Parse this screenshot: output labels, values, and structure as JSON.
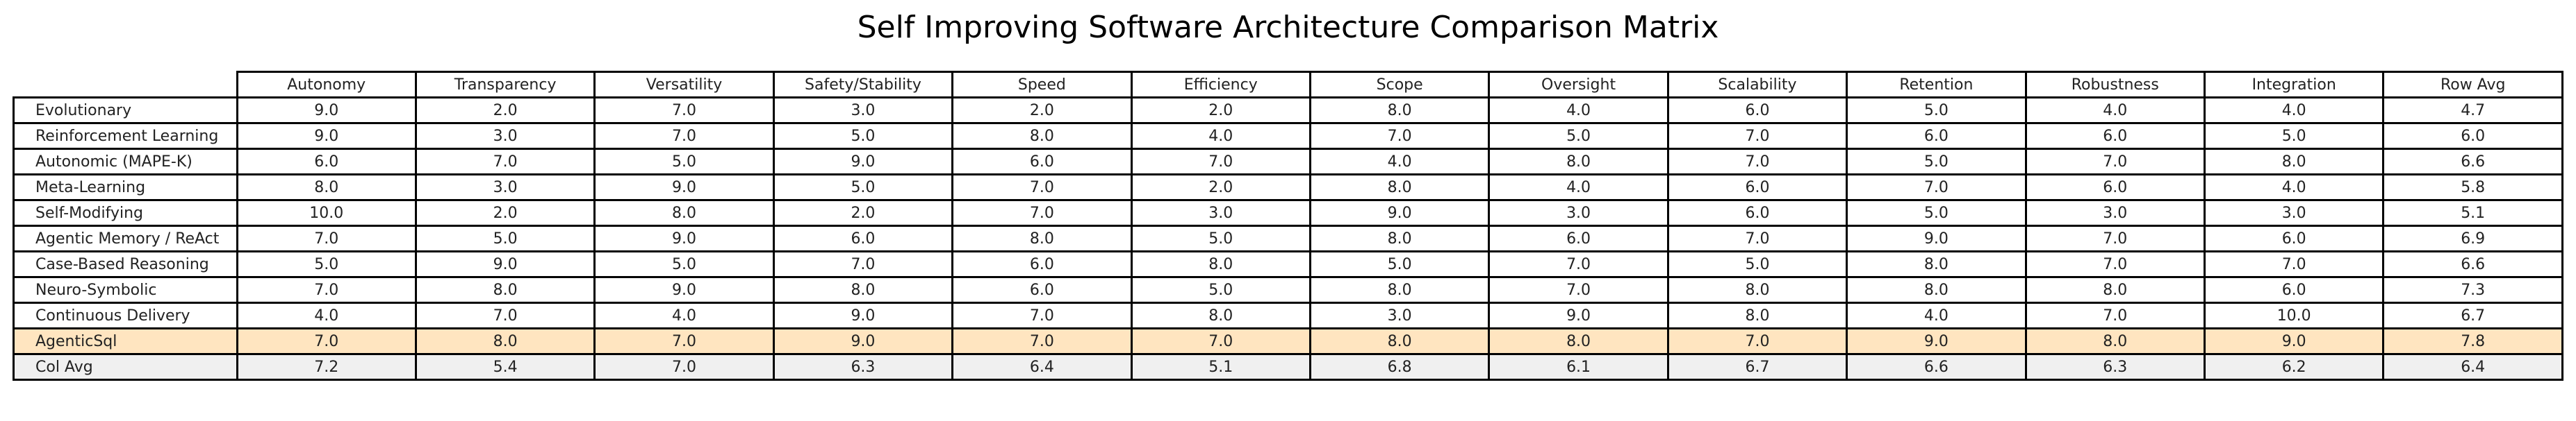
{
  "chart_data": {
    "type": "table",
    "title": "Self Improving Software Architecture Comparison Matrix",
    "columns": [
      "Autonomy",
      "Transparency",
      "Versatility",
      "Safety/Stability",
      "Speed",
      "Efficiency",
      "Scope",
      "Oversight",
      "Scalability",
      "Retention",
      "Robustness",
      "Integration",
      "Row Avg"
    ],
    "rows": [
      {
        "label": "Evolutionary",
        "values": [
          "9.0",
          "2.0",
          "7.0",
          "3.0",
          "2.0",
          "2.0",
          "8.0",
          "4.0",
          "6.0",
          "5.0",
          "4.0",
          "4.0",
          "4.7"
        ]
      },
      {
        "label": "Reinforcement Learning",
        "values": [
          "9.0",
          "3.0",
          "7.0",
          "5.0",
          "8.0",
          "4.0",
          "7.0",
          "5.0",
          "7.0",
          "6.0",
          "6.0",
          "5.0",
          "6.0"
        ]
      },
      {
        "label": "Autonomic (MAPE-K)",
        "values": [
          "6.0",
          "7.0",
          "5.0",
          "9.0",
          "6.0",
          "7.0",
          "4.0",
          "8.0",
          "7.0",
          "5.0",
          "7.0",
          "8.0",
          "6.6"
        ]
      },
      {
        "label": "Meta-Learning",
        "values": [
          "8.0",
          "3.0",
          "9.0",
          "5.0",
          "7.0",
          "2.0",
          "8.0",
          "4.0",
          "6.0",
          "7.0",
          "6.0",
          "4.0",
          "5.8"
        ]
      },
      {
        "label": "Self-Modifying",
        "values": [
          "10.0",
          "2.0",
          "8.0",
          "2.0",
          "7.0",
          "3.0",
          "9.0",
          "3.0",
          "6.0",
          "5.0",
          "3.0",
          "3.0",
          "5.1"
        ]
      },
      {
        "label": "Agentic Memory / ReAct",
        "values": [
          "7.0",
          "5.0",
          "9.0",
          "6.0",
          "8.0",
          "5.0",
          "8.0",
          "6.0",
          "7.0",
          "9.0",
          "7.0",
          "6.0",
          "6.9"
        ]
      },
      {
        "label": "Case-Based Reasoning",
        "values": [
          "5.0",
          "9.0",
          "5.0",
          "7.0",
          "6.0",
          "8.0",
          "5.0",
          "7.0",
          "5.0",
          "8.0",
          "7.0",
          "7.0",
          "6.6"
        ]
      },
      {
        "label": "Neuro-Symbolic",
        "values": [
          "7.0",
          "8.0",
          "9.0",
          "8.0",
          "6.0",
          "5.0",
          "8.0",
          "7.0",
          "8.0",
          "8.0",
          "8.0",
          "6.0",
          "7.3"
        ]
      },
      {
        "label": "Continuous Delivery",
        "values": [
          "4.0",
          "7.0",
          "4.0",
          "9.0",
          "7.0",
          "8.0",
          "3.0",
          "9.0",
          "8.0",
          "4.0",
          "7.0",
          "10.0",
          "6.7"
        ]
      },
      {
        "label": "AgenticSql",
        "values": [
          "7.0",
          "8.0",
          "7.0",
          "9.0",
          "7.0",
          "7.0",
          "8.0",
          "8.0",
          "7.0",
          "9.0",
          "8.0",
          "9.0",
          "7.8"
        ],
        "highlight": true
      },
      {
        "label": "Col Avg",
        "values": [
          "7.2",
          "5.4",
          "7.0",
          "6.3",
          "6.4",
          "5.1",
          "6.8",
          "6.1",
          "6.7",
          "6.6",
          "6.3",
          "6.2",
          "6.4"
        ],
        "summary": true
      }
    ]
  },
  "colors": {
    "highlight_row": "#ffe5c0",
    "summary_row": "#f0f0f0",
    "border": "#000000"
  }
}
